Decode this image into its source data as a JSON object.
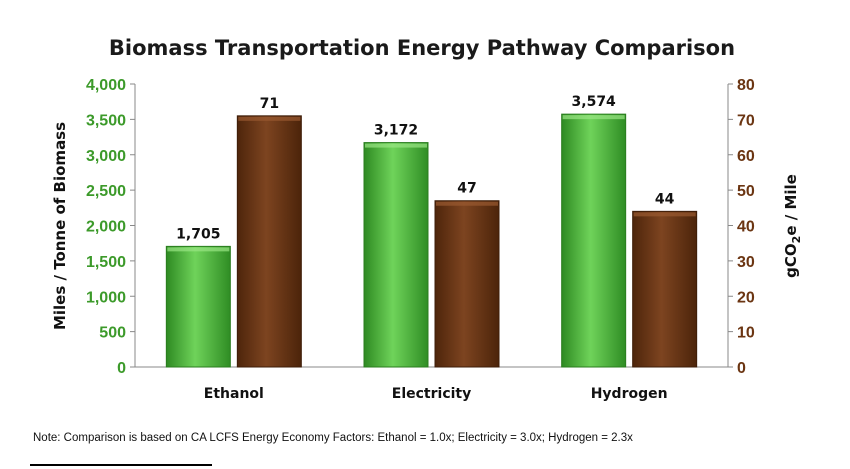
{
  "chart_data": {
    "type": "bar",
    "title": "Biomass Transportation Energy Pathway Comparison",
    "categories": [
      "Ethanol",
      "Electricity",
      "Hydrogen"
    ],
    "series": [
      {
        "name": "Miles / Tonne of Biomass",
        "axis": "left",
        "color": "#3fa531",
        "values": [
          1705,
          3172,
          3574
        ]
      },
      {
        "name": "gCO2e / Mile",
        "axis": "right",
        "color": "#6b3512",
        "values": [
          71,
          47,
          44
        ]
      }
    ],
    "data_labels": [
      [
        "1,705",
        "3,172",
        "3,574"
      ],
      [
        "71",
        "47",
        "44"
      ]
    ],
    "left_axis": {
      "label": "Miles / Tonne of Biomass",
      "range": [
        0,
        4000
      ],
      "ticks": [
        "0",
        "500",
        "1,000",
        "1,500",
        "2,000",
        "2,500",
        "3,000",
        "3,500",
        "4,000"
      ],
      "color": "#3c9a2a"
    },
    "right_axis": {
      "label_prefix": "gCO",
      "label_subscript": "2",
      "label_suffix": "e / Mile",
      "range": [
        0,
        80
      ],
      "ticks": [
        "0",
        "10",
        "20",
        "30",
        "40",
        "50",
        "60",
        "70",
        "80"
      ],
      "color": "#6b3512"
    },
    "grid": false,
    "legend": "none"
  },
  "note": "Note: Comparison is based on CA LCFS Energy Economy Factors: Ethanol = 1.0x; Electricity = 3.0x; Hydrogen = 2.3x"
}
